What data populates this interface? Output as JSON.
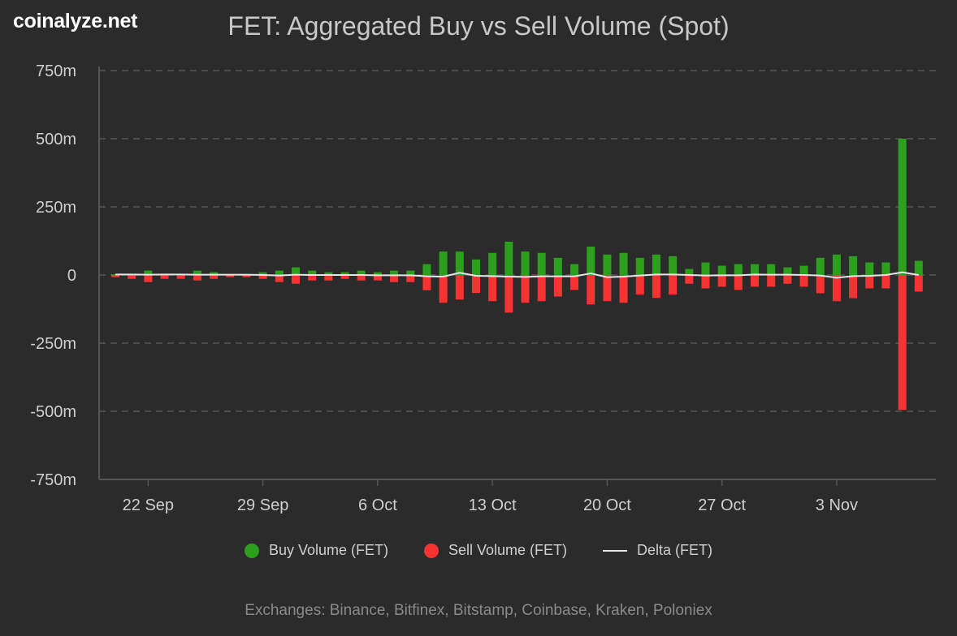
{
  "logo": "coinalyze.net",
  "chart_data": {
    "type": "bar",
    "title": "FET: Aggregated Buy vs Sell Volume (Spot)",
    "ylim": [
      -750,
      750
    ],
    "yunit": "m",
    "yticks": [
      "750m",
      "500m",
      "250m",
      "0",
      "-250m",
      "-500m",
      "-750m"
    ],
    "ytick_values": [
      750,
      500,
      250,
      0,
      -250,
      -500,
      -750
    ],
    "grid": true,
    "legend_position": "bottom",
    "x_start": "2023-09-20",
    "x_end": "2023-11-08",
    "xticks": [
      {
        "label": "22 Sep",
        "index": 2
      },
      {
        "label": "29 Sep",
        "index": 9
      },
      {
        "label": "6 Oct",
        "index": 16
      },
      {
        "label": "13 Oct",
        "index": 23
      },
      {
        "label": "20 Oct",
        "index": 30
      },
      {
        "label": "27 Oct",
        "index": 37
      },
      {
        "label": "3 Nov",
        "index": 44
      }
    ],
    "series": [
      {
        "name": "Buy Volume (FET)",
        "type": "bar",
        "color": "#2ca01c",
        "values": [
          3,
          1,
          16,
          1,
          2,
          16,
          10,
          3,
          3,
          10,
          16,
          28,
          16,
          10,
          10,
          16,
          10,
          16,
          16,
          40,
          86,
          86,
          57,
          81,
          122,
          86,
          81,
          63,
          40,
          104,
          75,
          81,
          63,
          75,
          69,
          22,
          46,
          34,
          40,
          40,
          40,
          28,
          34,
          63,
          75,
          69,
          46,
          46,
          500,
          52
        ]
      },
      {
        "name": "Sell Volume (FET)",
        "type": "bar",
        "color": "#f53333",
        "values": [
          -8,
          -14,
          -26,
          -14,
          -14,
          -20,
          -14,
          -8,
          -8,
          -14,
          -26,
          -32,
          -20,
          -20,
          -14,
          -20,
          -20,
          -26,
          -26,
          -56,
          -102,
          -90,
          -66,
          -96,
          -138,
          -102,
          -96,
          -79,
          -55,
          -108,
          -96,
          -102,
          -72,
          -84,
          -72,
          -32,
          -49,
          -43,
          -55,
          -43,
          -43,
          -32,
          -43,
          -67,
          -96,
          -85,
          -49,
          -49,
          -495,
          -61
        ]
      },
      {
        "name": "Delta (FET)",
        "type": "line",
        "color": "#e6e6e6",
        "values": [
          2,
          2,
          1,
          2,
          2,
          1,
          1,
          1,
          1,
          0,
          -2,
          1,
          0,
          0,
          0,
          0,
          -1,
          -1,
          -1,
          -5,
          -6,
          8,
          -3,
          -4,
          -6,
          -7,
          -5,
          -5,
          -5,
          6,
          -8,
          -6,
          -2,
          2,
          2,
          0,
          -2,
          -1,
          -1,
          2,
          1,
          1,
          0,
          -2,
          -10,
          -4,
          -3,
          0,
          10,
          0
        ]
      }
    ]
  },
  "footer": "Exchanges: Binance, Bitfinex, Bitstamp, Coinbase, Kraken, Poloniex"
}
